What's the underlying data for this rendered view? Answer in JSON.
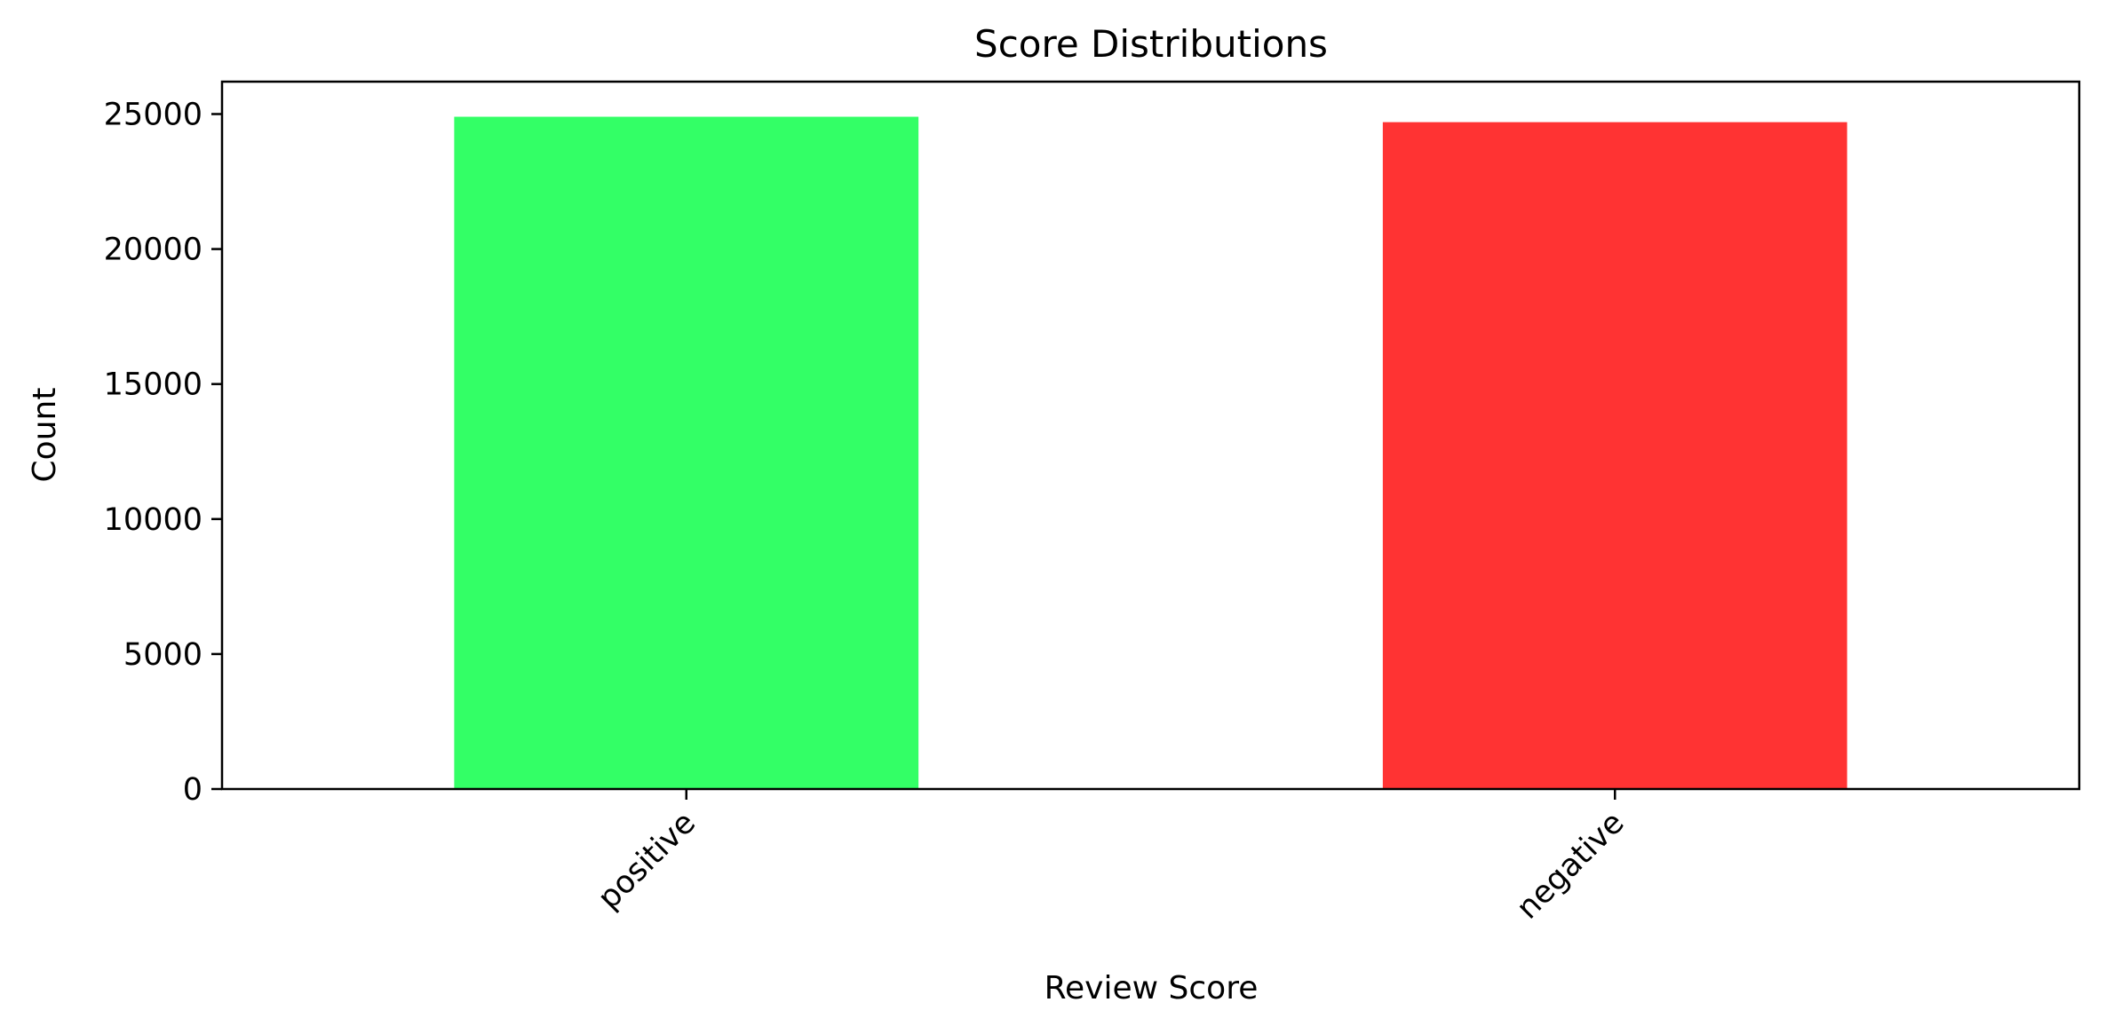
{
  "chart_data": {
    "type": "bar",
    "title": "Score Distributions",
    "xlabel": "Review Score",
    "ylabel": "Count",
    "categories": [
      "positive",
      "negative"
    ],
    "values": [
      24900,
      24700
    ],
    "colors": [
      "#33ff66",
      "#ff3333"
    ],
    "ylim": [
      0,
      26200
    ],
    "yticks": [
      0,
      5000,
      10000,
      15000,
      20000,
      25000
    ],
    "grid": false,
    "legend": "none"
  }
}
